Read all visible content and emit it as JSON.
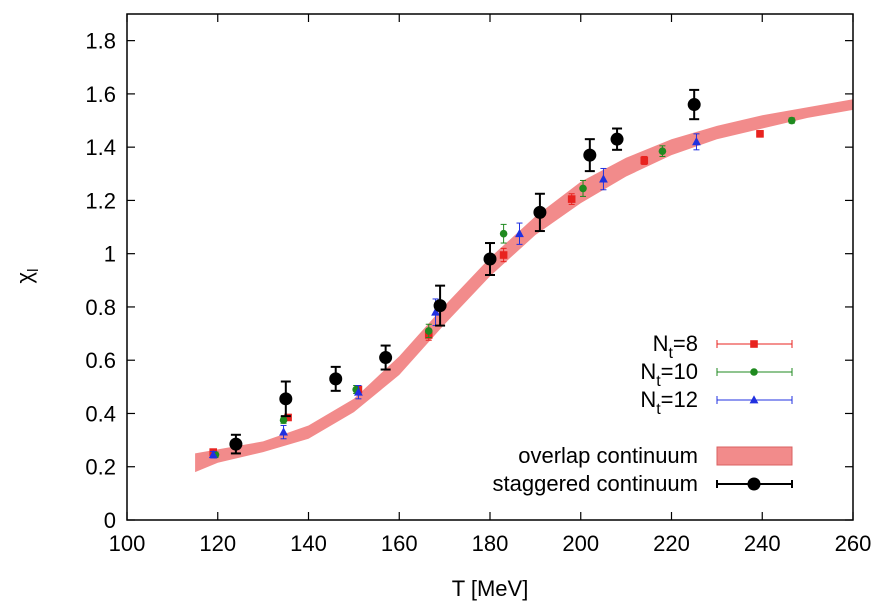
{
  "chart_data": {
    "type": "scatter",
    "xlabel": "T [MeV]",
    "ylabel_main": "χ",
    "ylabel_sub": "l",
    "xlim": [
      100,
      260
    ],
    "ylim": [
      0,
      1.9
    ],
    "x_ticks": [
      100,
      120,
      140,
      160,
      180,
      200,
      220,
      240,
      260
    ],
    "x_tick_labels": [
      "100",
      "120",
      "140",
      "160",
      "180",
      "200",
      "220",
      "240",
      "260"
    ],
    "y_ticks": [
      0,
      0.2,
      0.4,
      0.6,
      0.8,
      1.0,
      1.2,
      1.4,
      1.6,
      1.8
    ],
    "y_tick_labels": [
      "0",
      "0.2",
      "0.4",
      "0.6",
      "0.8",
      "1",
      "1.2",
      "1.4",
      "1.6",
      "1.8"
    ],
    "grid": false,
    "legend_position": "bottom-right",
    "band": {
      "name": "overlap continuum",
      "color": "#f28b8b",
      "x": [
        115,
        120,
        130,
        140,
        150,
        160,
        170,
        180,
        190,
        200,
        210,
        220,
        230,
        240,
        250,
        260
      ],
      "lower": [
        0.18,
        0.215,
        0.255,
        0.305,
        0.405,
        0.545,
        0.735,
        0.915,
        1.07,
        1.19,
        1.29,
        1.37,
        1.43,
        1.47,
        1.51,
        1.54
      ],
      "upper": [
        0.25,
        0.265,
        0.295,
        0.355,
        0.455,
        0.615,
        0.805,
        0.985,
        1.14,
        1.27,
        1.36,
        1.43,
        1.48,
        1.52,
        1.55,
        1.58
      ]
    },
    "series": [
      {
        "name_main": "N",
        "name_sub": "t",
        "name_tail": "=8",
        "color": "#e8231f",
        "marker": "square",
        "points": [
          {
            "x": 119,
            "y": 0.255,
            "err": 0.008
          },
          {
            "x": 135.5,
            "y": 0.385,
            "err": 0.01
          },
          {
            "x": 151,
            "y": 0.49,
            "err": 0.012
          },
          {
            "x": 166.5,
            "y": 0.695,
            "err": 0.02
          },
          {
            "x": 183,
            "y": 0.995,
            "err": 0.025
          },
          {
            "x": 198,
            "y": 1.205,
            "err": 0.02
          },
          {
            "x": 214,
            "y": 1.35,
            "err": 0.015
          },
          {
            "x": 239.5,
            "y": 1.45,
            "err": 0.012
          }
        ]
      },
      {
        "name_main": "N",
        "name_sub": "t",
        "name_tail": "=10",
        "color": "#1f8a1f",
        "marker": "circle",
        "points": [
          {
            "x": 119.5,
            "y": 0.245,
            "err": 0.01
          },
          {
            "x": 134.5,
            "y": 0.375,
            "err": 0.012
          },
          {
            "x": 150.5,
            "y": 0.49,
            "err": 0.015
          },
          {
            "x": 166.5,
            "y": 0.71,
            "err": 0.025
          },
          {
            "x": 183,
            "y": 1.075,
            "err": 0.035
          },
          {
            "x": 200.5,
            "y": 1.245,
            "err": 0.03
          },
          {
            "x": 218,
            "y": 1.385,
            "err": 0.02
          },
          {
            "x": 246.5,
            "y": 1.5,
            "err": 0.01
          }
        ]
      },
      {
        "name_main": "N",
        "name_sub": "t",
        "name_tail": "=12",
        "color": "#2030e0",
        "marker": "triangle",
        "points": [
          {
            "x": 119,
            "y": 0.245,
            "err": 0.012
          },
          {
            "x": 134.5,
            "y": 0.33,
            "err": 0.025
          },
          {
            "x": 151,
            "y": 0.48,
            "err": 0.025
          },
          {
            "x": 168,
            "y": 0.78,
            "err": 0.05
          },
          {
            "x": 186.5,
            "y": 1.075,
            "err": 0.04
          },
          {
            "x": 205,
            "y": 1.28,
            "err": 0.04
          },
          {
            "x": 225.5,
            "y": 1.42,
            "err": 0.03
          }
        ]
      },
      {
        "name_main": "staggered continuum",
        "name_sub": "",
        "name_tail": "",
        "color": "#000000",
        "marker": "big-circle",
        "points": [
          {
            "x": 124,
            "y": 0.285,
            "err": 0.035
          },
          {
            "x": 135,
            "y": 0.455,
            "err": 0.065
          },
          {
            "x": 146,
            "y": 0.53,
            "err": 0.045
          },
          {
            "x": 157,
            "y": 0.61,
            "err": 0.045
          },
          {
            "x": 169,
            "y": 0.805,
            "err": 0.075
          },
          {
            "x": 180,
            "y": 0.98,
            "err": 0.06
          },
          {
            "x": 191,
            "y": 1.155,
            "err": 0.07
          },
          {
            "x": 202,
            "y": 1.37,
            "err": 0.06
          },
          {
            "x": 208,
            "y": 1.43,
            "err": 0.04
          },
          {
            "x": 225,
            "y": 1.56,
            "err": 0.055
          }
        ]
      }
    ]
  }
}
